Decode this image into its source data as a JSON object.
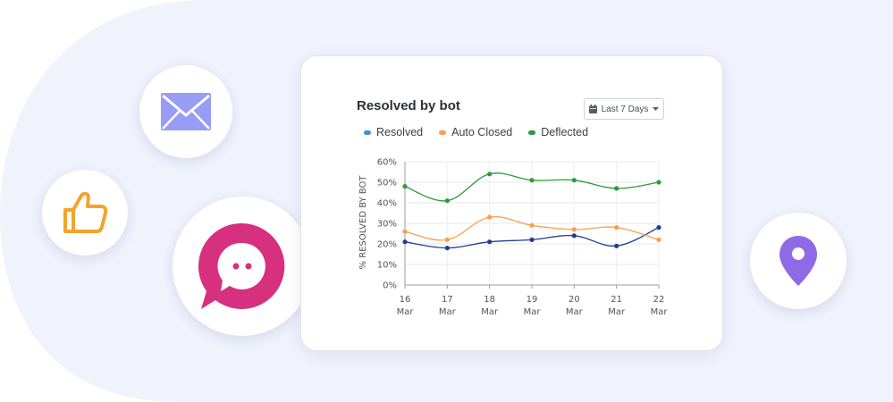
{
  "colors": {
    "resolved": "#233d8f",
    "auto_closed": "#f5a24b",
    "deflected": "#2e9a3c",
    "legend_resolved": "#3f8fe6",
    "chat_bubble": "#d6307f",
    "envelope": "#979cf5",
    "thumb": "#f2a42c",
    "pin": "#8f6ae6"
  },
  "icons": {
    "envelope": "envelope-icon",
    "thumbs_up": "thumbs-up-icon",
    "chat": "chat-bubble-icon",
    "location": "location-pin-icon",
    "calendar": "calendar-icon",
    "caret": "caret-down-icon"
  },
  "date_filter": {
    "label": "Last 7 Days"
  },
  "chart_data": {
    "type": "line",
    "title": "Resolved by bot",
    "ylabel": "% RESOLVED BY BOT",
    "xlabel": "",
    "ylim": [
      0,
      60
    ],
    "yticks": [
      0,
      10,
      20,
      30,
      40,
      50,
      60
    ],
    "ytick_labels": [
      "0%",
      "10%",
      "20%",
      "30%",
      "40%",
      "50%",
      "60%"
    ],
    "categories": [
      {
        "day": "16",
        "month": "Mar"
      },
      {
        "day": "17",
        "month": "Mar"
      },
      {
        "day": "18",
        "month": "Mar"
      },
      {
        "day": "19",
        "month": "Mar"
      },
      {
        "day": "20",
        "month": "Mar"
      },
      {
        "day": "21",
        "month": "Mar"
      },
      {
        "day": "22",
        "month": "Mar"
      }
    ],
    "legend": [
      "Resolved",
      "Auto Closed",
      "Deflected"
    ],
    "series": [
      {
        "name": "Resolved",
        "values": [
          21,
          18,
          21,
          22,
          24,
          19,
          28
        ]
      },
      {
        "name": "Auto Closed",
        "values": [
          26,
          22,
          33,
          29,
          27,
          28,
          22
        ]
      },
      {
        "name": "Deflected",
        "values": [
          48,
          41,
          54,
          51,
          51,
          47,
          50
        ]
      }
    ]
  }
}
